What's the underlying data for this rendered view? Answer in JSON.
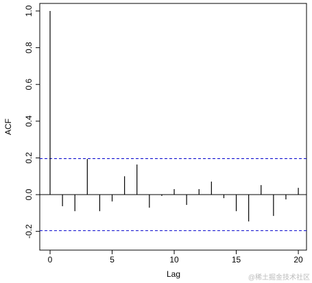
{
  "chart_data": {
    "type": "acf",
    "x_label": "Lag",
    "y_label": "ACF",
    "x": [
      0,
      1,
      2,
      3,
      4,
      5,
      6,
      7,
      8,
      9,
      10,
      11,
      12,
      13,
      14,
      15,
      16,
      17,
      18,
      19,
      20
    ],
    "values": [
      1.0,
      -0.063,
      -0.09,
      0.194,
      -0.09,
      -0.037,
      0.1,
      0.164,
      -0.071,
      -0.007,
      0.03,
      -0.056,
      0.03,
      0.071,
      -0.019,
      -0.09,
      -0.146,
      0.052,
      -0.116,
      -0.026,
      0.037
    ],
    "color": "#000000",
    "ci": 0.196,
    "ci_color": "#0000cc",
    "xlim": [
      -0.83,
      20.66
    ],
    "ylim": [
      -0.302,
      1.041
    ],
    "xticks": [
      0,
      5,
      10,
      15,
      20
    ],
    "yticks": [
      -0.2,
      {
        "value": 0,
        "label": "0.0"
      },
      0.2,
      0.4,
      0.6,
      0.8,
      {
        "value": 1,
        "label": "1.0"
      }
    ],
    "watermark": "@稀土掘金技术社区"
  }
}
